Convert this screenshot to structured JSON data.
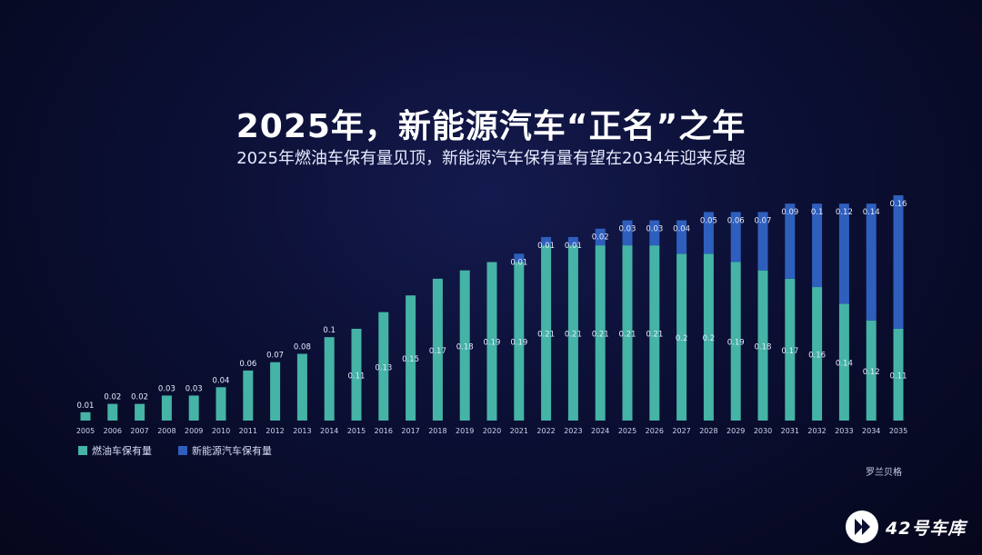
{
  "colors": {
    "fuel": "#45b3a6",
    "nev": "#2e5fbd",
    "background": "#0b0f33"
  },
  "chart_data": {
    "type": "bar",
    "stacked": true,
    "title": "2025年，新能源汽车“正名”之年",
    "subtitle": "2025年燃油车保有量见顶，新能源汽车保有量有望在2034年迎来反超",
    "categories": [
      "2005",
      "2006",
      "2007",
      "2008",
      "2009",
      "2010",
      "2011",
      "2012",
      "2013",
      "2014",
      "2015",
      "2016",
      "2017",
      "2018",
      "2019",
      "2020",
      "2021",
      "2022",
      "2023",
      "2024",
      "2025",
      "2026",
      "2027",
      "2028",
      "2029",
      "2030",
      "2031",
      "2032",
      "2033",
      "2034",
      "2035"
    ],
    "series": [
      {
        "name": "燃油车保有量",
        "values": [
          0.01,
          0.02,
          0.02,
          0.03,
          0.03,
          0.04,
          0.06,
          0.07,
          0.08,
          0.1,
          0.11,
          0.13,
          0.15,
          0.17,
          0.18,
          0.19,
          0.19,
          0.21,
          0.21,
          0.21,
          0.21,
          0.21,
          0.2,
          0.2,
          0.19,
          0.18,
          0.17,
          0.16,
          0.14,
          0.12,
          0.11
        ]
      },
      {
        "name": "新能源汽车保有量",
        "values": [
          null,
          null,
          null,
          null,
          null,
          null,
          null,
          null,
          null,
          null,
          null,
          null,
          null,
          null,
          null,
          null,
          0.01,
          0.01,
          0.01,
          0.02,
          0.03,
          0.03,
          0.04,
          0.05,
          0.06,
          0.07,
          0.09,
          0.1,
          0.12,
          0.14,
          0.16
        ]
      }
    ],
    "xlabel": "",
    "ylabel": "",
    "ylim": [
      0,
      0.27
    ],
    "grid": false,
    "legend": "bottom-left",
    "source": "罗兰贝格"
  },
  "watermark": {
    "text": "42号车库"
  }
}
